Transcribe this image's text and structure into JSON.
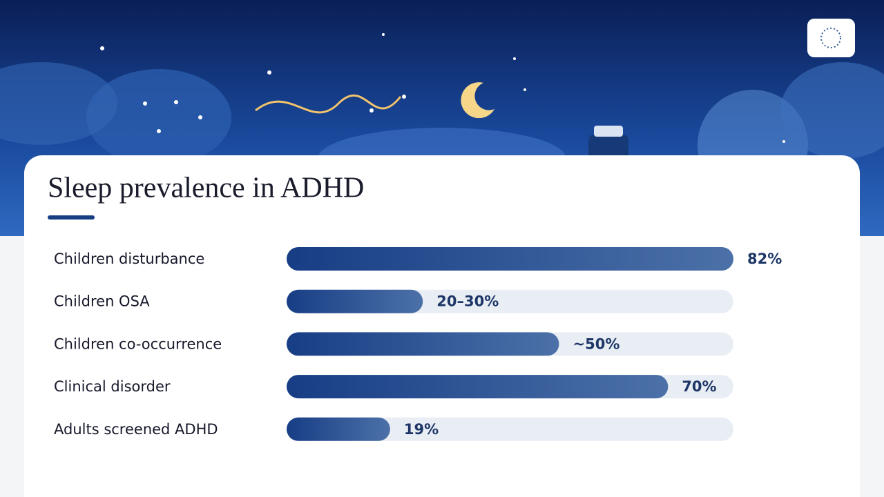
{
  "chart_data": {
    "type": "bar",
    "orientation": "horizontal",
    "title": "Sleep prevalence in ADHD",
    "categories": [
      "Children disturbance",
      "Children OSA",
      "Children co-occurrence",
      "Clinical disorder",
      "Adults screened ADHD"
    ],
    "values": [
      82,
      25,
      50,
      70,
      19
    ],
    "value_labels": [
      "82%",
      "20–30%",
      "~50%",
      "70%",
      "19%"
    ],
    "xlim": [
      0,
      82
    ],
    "color": "#1c428a"
  }
}
